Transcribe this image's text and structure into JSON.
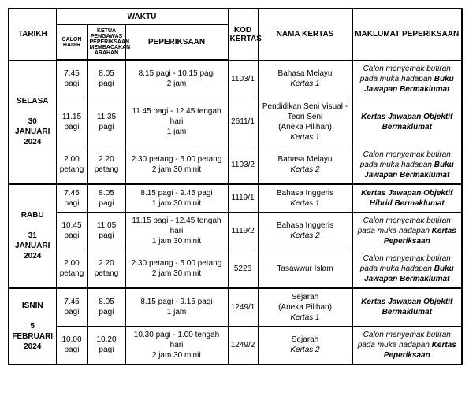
{
  "headers": {
    "tarikh": "TARIKH",
    "waktu": "WAKTU",
    "calon": "CALON HADIR",
    "ketua": "KETUA PENGAWAS PEPERIKSAAN MEMBACAKAN ARAHAN",
    "peperiksaan": "PEPERIKSAAN",
    "kod": "KOD KERTAS",
    "nama": "NAMA KERTAS",
    "maklumat": "MAKLUMAT PEPERIKSAAN"
  },
  "days": [
    {
      "tarikh_html": "SELASA<br><br>30<br>JANUARI<br>2024",
      "rows": [
        {
          "calon": "7.45<br>pagi",
          "ketua": "8.05<br>pagi",
          "pep": "8.15 pagi - 10.15 pagi<br>2 jam",
          "kod": "1103/1",
          "nama": "Bahasa Melayu<br><span class='nama-sub'>Kertas 1</span>",
          "mak": "Calon menyemak butiran pada muka hadapan <b>Buku Jawapan Bermaklumat</b>"
        },
        {
          "calon": "11.15<br>pagi",
          "ketua": "11.35<br>pagi",
          "pep": "11.45 pagi - 12.45 tengah hari<br>1 jam",
          "kod": "2611/1",
          "nama": "Pendidikan Seni Visual -<br>Teori Seni<br>(Aneka Pilihan)<br><span class='nama-sub'>Kertas 1</span>",
          "mak": "<b>Kertas Jawapan Objektif Bermaklumat</b>"
        },
        {
          "calon": "2.00<br>petang",
          "ketua": "2.20<br>petang",
          "pep": "2.30 petang - 5.00 petang<br>2 jam 30 minit",
          "kod": "1103/2",
          "nama": "Bahasa Melayu<br><span class='nama-sub'>Kertas 2</span>",
          "mak": "Calon menyemak butiran pada muka hadapan <b>Buku Jawapan Bermaklumat</b>"
        }
      ]
    },
    {
      "tarikh_html": "RABU<br><br>31<br>JANUARI<br>2024",
      "rows": [
        {
          "calon": "7.45<br>pagi",
          "ketua": "8.05<br>pagi",
          "pep": "8.15 pagi - 9.45 pagi<br>1 jam 30 minit",
          "kod": "1119/1",
          "nama": "Bahasa Inggeris<br><span class='nama-sub'>Kertas 1</span>",
          "mak": "<b>Kertas Jawapan Objektif Hibrid Bermaklumat</b>"
        },
        {
          "calon": "10.45<br>pagi",
          "ketua": "11.05<br>pagi",
          "pep": "11.15 pagi - 12.45 tengah hari<br>1 jam 30 minit",
          "kod": "1119/2",
          "nama": "Bahasa Inggeris<br><span class='nama-sub'>Kertas 2</span>",
          "mak": "Calon menyemak butiran pada muka hadapan <b>Kertas Peperiksaan</b>"
        },
        {
          "calon": "2.00<br>petang",
          "ketua": "2.20<br>petang",
          "pep": "2.30 petang - 5.00 petang<br>2 jam 30 minit",
          "kod": "5226",
          "nama": "Tasawwur Islam",
          "mak": "Calon menyemak butiran pada muka hadapan <b>Buku Jawapan Bermaklumat</b>"
        }
      ]
    },
    {
      "tarikh_html": "ISNIN<br><br>5<br>FEBRUARI<br>2024",
      "rows": [
        {
          "calon": "7.45<br>pagi",
          "ketua": "8.05<br>pagi",
          "pep": "8.15 pagi - 9.15 pagi<br>1 jam",
          "kod": "1249/1",
          "nama": "Sejarah<br>(Aneka Pilihan)<br><span class='nama-sub'>Kertas 1</span>",
          "mak": "<b>Kertas Jawapan Objektif Bermaklumat</b>"
        },
        {
          "calon": "10.00<br>pagi",
          "ketua": "10.20<br>pagi",
          "pep": "10.30 pagi - 1.00 tengah hari<br>2 jam 30 minit",
          "kod": "1249/2",
          "nama": "Sejarah<br><span class='nama-sub'>Kertas 2</span>",
          "mak": "Calon menyemak butiran pada muka hadapan <b>Kertas Peperiksaan</b>"
        }
      ]
    }
  ]
}
